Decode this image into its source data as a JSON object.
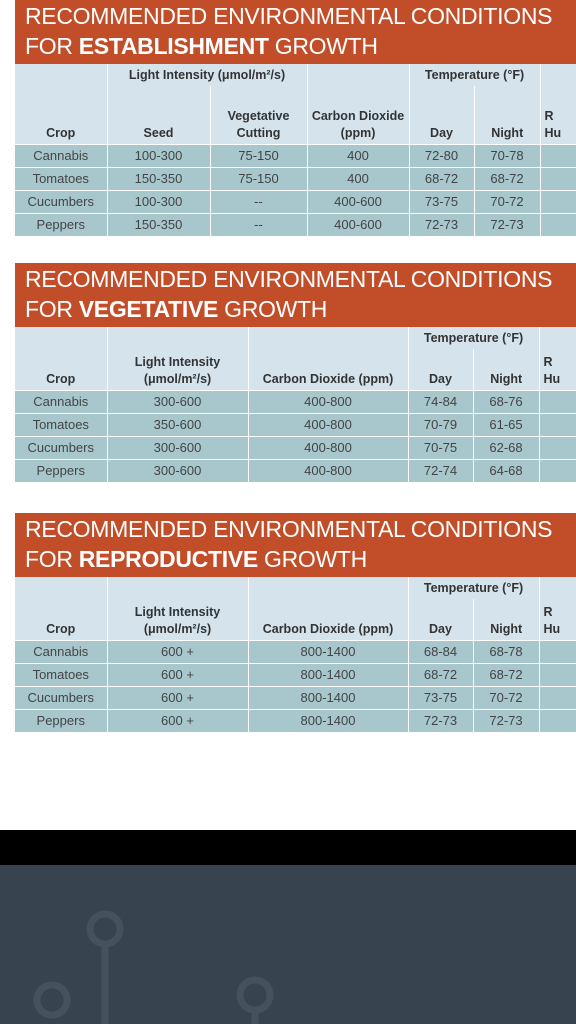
{
  "sections": [
    {
      "banner_line1": "RECOMMENDED ENVIRONMENTAL CONDITIONS",
      "banner_prefix": "FOR ",
      "banner_bold": "ESTABLISHMENT",
      "banner_suffix": " GROWTH",
      "headers": {
        "light_group": "Light Intensity (μmol/m²/s)",
        "temp_group": "Temperature (°F)",
        "crop": "Crop",
        "seed": "Seed",
        "vegetative_cutting": "Vegetative Cutting",
        "co2": "Carbon Dioxide (ppm)",
        "day": "Day",
        "night": "Night",
        "partial_top": "R",
        "partial_bottom": "Hu"
      },
      "rows": [
        {
          "crop": "Cannabis",
          "seed": "100-300",
          "cutting": "75-150",
          "co2": "400",
          "day": "72-80",
          "night": "70-78"
        },
        {
          "crop": "Tomatoes",
          "seed": "150-350",
          "cutting": "75-150",
          "co2": "400",
          "day": "68-72",
          "night": "68-72"
        },
        {
          "crop": "Cucumbers",
          "seed": "100-300",
          "cutting": "--",
          "co2": "400-600",
          "day": "73-75",
          "night": "70-72"
        },
        {
          "crop": "Peppers",
          "seed": "150-350",
          "cutting": "--",
          "co2": "400-600",
          "day": "72-73",
          "night": "72-73"
        }
      ]
    },
    {
      "banner_line1": "RECOMMENDED ENVIRONMENTAL CONDITIONS",
      "banner_prefix": "FOR ",
      "banner_bold": "VEGETATIVE",
      "banner_suffix": " GROWTH",
      "headers": {
        "temp_group": "Temperature (°F)",
        "crop": "Crop",
        "light": "Light Intensity (μmol/m²/s)",
        "co2": "Carbon Dioxide (ppm)",
        "day": "Day",
        "night": "Night",
        "partial_top": "R",
        "partial_bottom": "Hu"
      },
      "rows": [
        {
          "crop": "Cannabis",
          "light": "300-600",
          "co2": "400-800",
          "day": "74-84",
          "night": "68-76"
        },
        {
          "crop": "Tomatoes",
          "light": "350-600",
          "co2": "400-800",
          "day": "70-79",
          "night": "61-65"
        },
        {
          "crop": "Cucumbers",
          "light": "300-600",
          "co2": "400-800",
          "day": "70-75",
          "night": "62-68"
        },
        {
          "crop": "Peppers",
          "light": "300-600",
          "co2": "400-800",
          "day": "72-74",
          "night": "64-68"
        }
      ]
    },
    {
      "banner_line1": "RECOMMENDED ENVIRONMENTAL CONDITIONS",
      "banner_prefix": "FOR ",
      "banner_bold": "REPRODUCTIVE",
      "banner_suffix": " GROWTH",
      "headers": {
        "temp_group": "Temperature (°F)",
        "crop": "Crop",
        "light": "Light Intensity (μmol/m²/s)",
        "co2": "Carbon Dioxide (ppm)",
        "day": "Day",
        "night": "Night",
        "partial_top": "R",
        "partial_bottom": "Hu"
      },
      "rows": [
        {
          "crop": "Cannabis",
          "light": "600 +",
          "co2": "800-1400",
          "day": "68-84",
          "night": "68-78"
        },
        {
          "crop": "Tomatoes",
          "light": "600 +",
          "co2": "800-1400",
          "day": "68-72",
          "night": "68-72"
        },
        {
          "crop": "Cucumbers",
          "light": "600 +",
          "co2": "800-1400",
          "day": "73-75",
          "night": "70-72"
        },
        {
          "crop": "Peppers",
          "light": "600 +",
          "co2": "800-1400",
          "day": "72-73",
          "night": "72-73"
        }
      ]
    }
  ]
}
